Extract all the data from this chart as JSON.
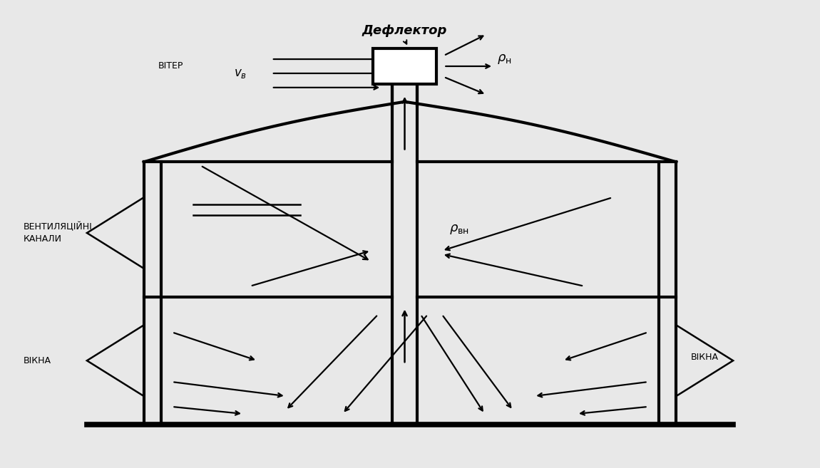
{
  "bg_color": "#e8e8e8",
  "line_color": "#000000",
  "title_deflector": "Дефлектор",
  "label_viter": "ВІТЕР",
  "label_ventyl": "ВЕНТИЛЯЦІЙНІ\nКАНАЛИ",
  "label_vikna1": "ВІКНА",
  "label_vikna2": "ВІКНА"
}
